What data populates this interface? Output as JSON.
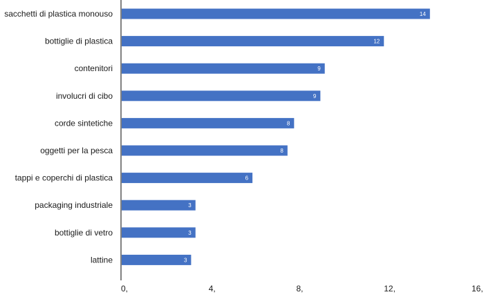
{
  "chart_data": {
    "type": "bar",
    "orientation": "horizontal",
    "categories": [
      "sacchetti di plastica monouso",
      "bottiglie di plastica",
      "contenitori",
      "involucri di cibo",
      "corde sintetiche",
      "oggetti per la pesca",
      "tappi e coperchi di plastica",
      "packaging industriale",
      "bottiglie di vetro",
      "lattine"
    ],
    "values": [
      14.1,
      12.0,
      9.3,
      9.1,
      7.9,
      7.6,
      6.0,
      3.4,
      3.4,
      3.2
    ],
    "data_labels": [
      "14",
      "12",
      "9",
      "9",
      "8",
      "8",
      "6",
      "3",
      "3",
      "3"
    ],
    "ticks": [
      0,
      4,
      8,
      12,
      16
    ],
    "tick_labels": [
      "0,",
      "4,",
      "8,",
      "12,",
      "16,"
    ],
    "xlim": [
      0,
      16
    ],
    "title": "",
    "xlabel": "",
    "ylabel": "",
    "grid": false,
    "legend": "none",
    "bar_color": "#4472C4",
    "axis_color": "#000000"
  }
}
